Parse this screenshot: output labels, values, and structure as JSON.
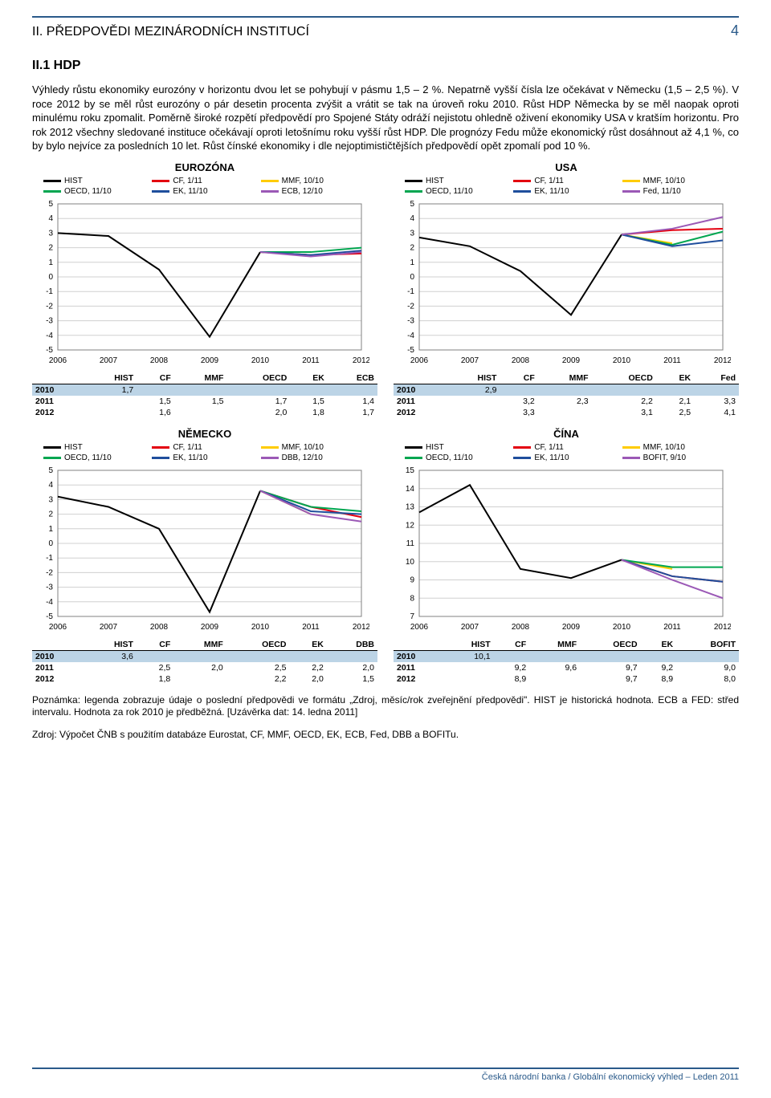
{
  "header": {
    "title": "II. PŘEDPOVĚDI MEZINÁRODNÍCH INSTITUCÍ",
    "page": "4"
  },
  "section": {
    "heading": "II.1 HDP"
  },
  "paragraph": "Výhledy růstu ekonomiky eurozóny v horizontu dvou let se pohybují v pásmu 1,5 – 2 %. Nepatrně vyšší čísla lze očekávat v Německu (1,5 – 2,5 %). V roce 2012 by se měl růst eurozóny o pár desetin procenta zvýšit a vrátit se tak na úroveň roku 2010. Růst HDP Německa by se měl naopak oproti minulému roku zpomalit. Poměrně široké rozpětí předpovědí pro Spojené Státy odráží nejistotu ohledně oživení ekonomiky USA v kratším horizontu. Pro rok 2012 všechny sledované instituce očekávají oproti letošnímu roku vyšší růst HDP. Dle prognózy Fedu může ekonomický růst dosáhnout až 4,1 %, co by bylo nejvíce za posledních 10 let. Růst čínské ekonomiky i dle nejoptimističtějších předpovědí opět zpomalí pod 10 %.",
  "colors": {
    "hist": "#000000",
    "cf": "#e3000f",
    "mmf": "#ffcc00",
    "oecd": "#00a650",
    "ek": "#1f4e9c",
    "alt": "#9b59b6",
    "highlight_row": "#bcd4e6",
    "grid": "#d0d0d0",
    "axis": "#808080"
  },
  "legend_labels": {
    "hist": "HIST",
    "cf": "CF, 1/11",
    "mmf": "MMF, 10/10",
    "oecd": "OECD, 11/10",
    "ek": "EK, 11/10",
    "ecb": "ECB, 12/10",
    "fed": "Fed, 11/10",
    "dbb": "DBB, 12/10",
    "bofit": "BOFIT, 9/10"
  },
  "years": [
    "2006",
    "2007",
    "2008",
    "2009",
    "2010",
    "2011",
    "2012"
  ],
  "charts": {
    "eurozona": {
      "title": "EUROZÓNA",
      "ylim": [
        -5,
        5
      ],
      "ystep": 1,
      "alt_key": "ecb",
      "series": {
        "hist": [
          3.0,
          2.8,
          0.5,
          -4.1,
          1.7,
          null,
          null
        ],
        "cf": [
          null,
          null,
          null,
          null,
          1.7,
          1.5,
          1.6
        ],
        "mmf": [
          null,
          null,
          null,
          null,
          1.7,
          1.5,
          null
        ],
        "oecd": [
          null,
          null,
          null,
          null,
          1.7,
          1.7,
          2.0
        ],
        "ek": [
          null,
          null,
          null,
          null,
          1.7,
          1.5,
          1.8
        ],
        "alt": [
          null,
          null,
          null,
          null,
          1.7,
          1.4,
          1.7
        ]
      }
    },
    "usa": {
      "title": "USA",
      "ylim": [
        -5,
        5
      ],
      "ystep": 1,
      "alt_key": "fed",
      "series": {
        "hist": [
          2.7,
          2.1,
          0.4,
          -2.6,
          2.9,
          null,
          null
        ],
        "cf": [
          null,
          null,
          null,
          null,
          2.9,
          3.2,
          3.3
        ],
        "mmf": [
          null,
          null,
          null,
          null,
          2.9,
          2.3,
          null
        ],
        "oecd": [
          null,
          null,
          null,
          null,
          2.9,
          2.2,
          3.1
        ],
        "ek": [
          null,
          null,
          null,
          null,
          2.9,
          2.1,
          2.5
        ],
        "alt": [
          null,
          null,
          null,
          null,
          2.9,
          3.3,
          4.1
        ]
      }
    },
    "nemecko": {
      "title": "NĚMECKO",
      "ylim": [
        -5,
        5
      ],
      "ystep": 1,
      "alt_key": "dbb",
      "series": {
        "hist": [
          3.2,
          2.5,
          1.0,
          -4.7,
          3.6,
          null,
          null
        ],
        "cf": [
          null,
          null,
          null,
          null,
          3.6,
          2.5,
          1.8
        ],
        "mmf": [
          null,
          null,
          null,
          null,
          3.6,
          2.0,
          null
        ],
        "oecd": [
          null,
          null,
          null,
          null,
          3.6,
          2.5,
          2.2
        ],
        "ek": [
          null,
          null,
          null,
          null,
          3.6,
          2.2,
          2.0
        ],
        "alt": [
          null,
          null,
          null,
          null,
          3.6,
          2.0,
          1.5
        ]
      }
    },
    "cina": {
      "title": "ČÍNA",
      "ylim": [
        7,
        15
      ],
      "ystep": 1,
      "alt_key": "bofit",
      "series": {
        "hist": [
          12.7,
          14.2,
          9.6,
          9.1,
          10.1,
          null,
          null
        ],
        "cf": [
          null,
          null,
          null,
          null,
          10.1,
          9.2,
          8.9
        ],
        "mmf": [
          null,
          null,
          null,
          null,
          10.1,
          9.6,
          null
        ],
        "oecd": [
          null,
          null,
          null,
          null,
          10.1,
          9.7,
          9.7
        ],
        "ek": [
          null,
          null,
          null,
          null,
          10.1,
          9.2,
          8.9
        ],
        "alt": [
          null,
          null,
          null,
          null,
          10.1,
          9.0,
          8.0
        ]
      }
    }
  },
  "tables": {
    "eurozona": {
      "cols": [
        "",
        "HIST",
        "CF",
        "MMF",
        "OECD",
        "EK",
        "ECB"
      ],
      "rows": [
        [
          "2010",
          "1,7",
          "",
          "",
          "",
          "",
          ""
        ],
        [
          "2011",
          "",
          "1,5",
          "1,5",
          "1,7",
          "1,5",
          "1,4"
        ],
        [
          "2012",
          "",
          "1,6",
          "",
          "2,0",
          "1,8",
          "1,7"
        ]
      ]
    },
    "usa": {
      "cols": [
        "",
        "HIST",
        "CF",
        "MMF",
        "OECD",
        "EK",
        "Fed"
      ],
      "rows": [
        [
          "2010",
          "2,9",
          "",
          "",
          "",
          "",
          ""
        ],
        [
          "2011",
          "",
          "3,2",
          "2,3",
          "2,2",
          "2,1",
          "3,3"
        ],
        [
          "2012",
          "",
          "3,3",
          "",
          "3,1",
          "2,5",
          "4,1"
        ]
      ]
    },
    "nemecko": {
      "cols": [
        "",
        "HIST",
        "CF",
        "MMF",
        "OECD",
        "EK",
        "DBB"
      ],
      "rows": [
        [
          "2010",
          "3,6",
          "",
          "",
          "",
          "",
          ""
        ],
        [
          "2011",
          "",
          "2,5",
          "2,0",
          "2,5",
          "2,2",
          "2,0"
        ],
        [
          "2012",
          "",
          "1,8",
          "",
          "2,2",
          "2,0",
          "1,5"
        ]
      ]
    },
    "cina": {
      "cols": [
        "",
        "HIST",
        "CF",
        "MMF",
        "OECD",
        "EK",
        "BOFIT"
      ],
      "rows": [
        [
          "2010",
          "10,1",
          "",
          "",
          "",
          "",
          ""
        ],
        [
          "2011",
          "",
          "9,2",
          "9,6",
          "9,7",
          "9,2",
          "9,0"
        ],
        [
          "2012",
          "",
          "8,9",
          "",
          "9,7",
          "8,9",
          "8,0"
        ]
      ]
    }
  },
  "footnote": "Poznámka: legenda zobrazuje údaje o poslední předpovědi ve formátu „Zdroj, měsíc/rok zveřejnění předpovědi\". HIST je historická hodnota. ECB  a FED: střed intervalu. Hodnota za rok 2010 je předběžná. [Uzávěrka dat: 14. ledna 2011]",
  "source": "Zdroj: Výpočet ČNB s použitím databáze Eurostat, CF, MMF, OECD, EK, ECB, Fed, DBB a BOFITu.",
  "footer": "Česká národní banka / Globální ekonomický výhled – Leden 2011"
}
